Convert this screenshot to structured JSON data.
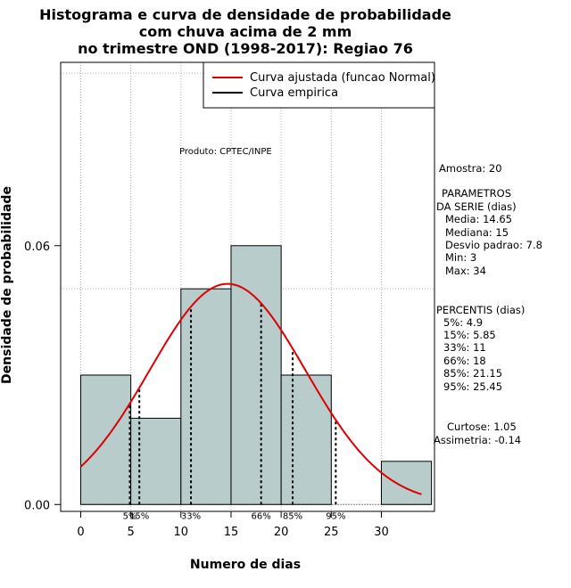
{
  "chart_data": {
    "type": "histogram",
    "title_lines": [
      "Histograma e curva de densidade de probabilidade",
      "com chuva acima de 2 mm",
      "no trimestre OND (1998-2017): Regiao 76"
    ],
    "xlabel": "Numero de dias",
    "ylabel": "Densidade de probabilidade",
    "xlim": [
      -2,
      35.3
    ],
    "ylim": [
      -0.0016,
      0.1025
    ],
    "xticks": [
      0,
      5,
      10,
      15,
      20,
      25,
      30
    ],
    "yticks": [
      0.0,
      0.06
    ],
    "ytick_labels": [
      "0.00",
      "0.06"
    ],
    "grid_x": [
      0,
      5,
      10,
      15,
      20,
      25,
      30
    ],
    "grid_y": [
      0.05,
      0.1
    ],
    "bins": [
      {
        "x0": 0,
        "x1": 5,
        "density": 0.03
      },
      {
        "x0": 5,
        "x1": 10,
        "density": 0.02
      },
      {
        "x0": 10,
        "x1": 15,
        "density": 0.05
      },
      {
        "x0": 15,
        "x1": 20,
        "density": 0.06
      },
      {
        "x0": 20,
        "x1": 25,
        "density": 0.03
      },
      {
        "x0": 25,
        "x1": 30,
        "density": 0.0
      },
      {
        "x0": 30,
        "x1": 35,
        "density": 0.01
      }
    ],
    "bar_color": "#b8cccc",
    "normal_fit": {
      "mean": 14.65,
      "sd": 7.8,
      "x_from": 0,
      "x_to": 34,
      "color": "#dd0000"
    },
    "percentile_lines": [
      {
        "label": "5%",
        "x": 4.9
      },
      {
        "label": "15%",
        "x": 5.85
      },
      {
        "label": "33%",
        "x": 11
      },
      {
        "label": "66%",
        "x": 18
      },
      {
        "label": "85%",
        "x": 21.15
      },
      {
        "label": "95%",
        "x": 25.45
      }
    ],
    "legend": [
      {
        "label": "Curva ajustada (funcao Normal)",
        "color": "#dd0000"
      },
      {
        "label": "Curva empirica",
        "color": "#000000"
      }
    ],
    "annotation": "Produto: CPTEC/INPE"
  },
  "stats_panel": {
    "amostra": "Amostra: 20",
    "param_title_1": "PARAMETROS",
    "param_title_2": "DA SERIE (dias)",
    "media": "Media: 14.65",
    "mediana": "Mediana: 15",
    "desvio": "Desvio padrao: 7.8",
    "min": "Min: 3",
    "max": "Max: 34",
    "perc_title": "PERCENTIS (dias)",
    "p5": "5%: 4.9",
    "p15": "15%: 5.85",
    "p33": "33%: 11",
    "p66": "66%: 18",
    "p85": "85%: 21.15",
    "p95": "95%: 25.45",
    "curtose": "Curtose: 1.05",
    "assimetria": "Assimetria: -0.14"
  }
}
